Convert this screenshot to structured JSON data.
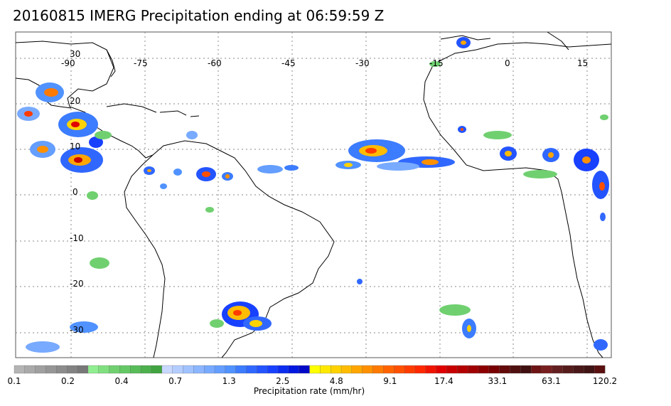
{
  "title": "20160815 IMERG Precipitation ending at 06:59:59 Z",
  "map": {
    "lon_labels": [
      "-90",
      "-75",
      "-60",
      "-45",
      "-30",
      "-15",
      "0",
      "15"
    ],
    "lat_labels": [
      "30",
      "20",
      "10",
      "0",
      "-10",
      "-20",
      "-30"
    ]
  },
  "colorbar": {
    "title": "Precipitation rate (mm/hr)",
    "tick_labels": [
      "0.1",
      "0.2",
      "0.4",
      "0.7",
      "1.3",
      "2.5",
      "4.8",
      "9.1",
      "17.4",
      "33.1",
      "63.1",
      "120.2"
    ],
    "colors": [
      "#b4b4b4",
      "#aaaaaa",
      "#a0a0a0",
      "#969696",
      "#8c8c8c",
      "#828282",
      "#787878",
      "#90ee90",
      "#80e080",
      "#70d070",
      "#64c864",
      "#58bc58",
      "#4cb04c",
      "#40a440",
      "#c8d8ff",
      "#b4cdff",
      "#a0c2ff",
      "#8cb6ff",
      "#78aaff",
      "#649eff",
      "#5092ff",
      "#3c7cff",
      "#3068ff",
      "#2454ff",
      "#1840ff",
      "#0c2cf0",
      "#0018e0",
      "#0008c8",
      "#ffff00",
      "#ffe800",
      "#ffd200",
      "#ffbc00",
      "#ffa600",
      "#ff9000",
      "#ff7a00",
      "#ff6400",
      "#ff5000",
      "#ff3c00",
      "#ff2800",
      "#f01400",
      "#e00000",
      "#c80000",
      "#b40000",
      "#a00000",
      "#8c0000",
      "#780000",
      "#640a0a",
      "#501010",
      "#401010",
      "#6e1414",
      "#781e1e",
      "#642020",
      "#561c1c",
      "#4a1818",
      "#401414",
      "#5a1010"
    ]
  },
  "colors": {
    "coast": "#000000",
    "grid": "#888888"
  }
}
